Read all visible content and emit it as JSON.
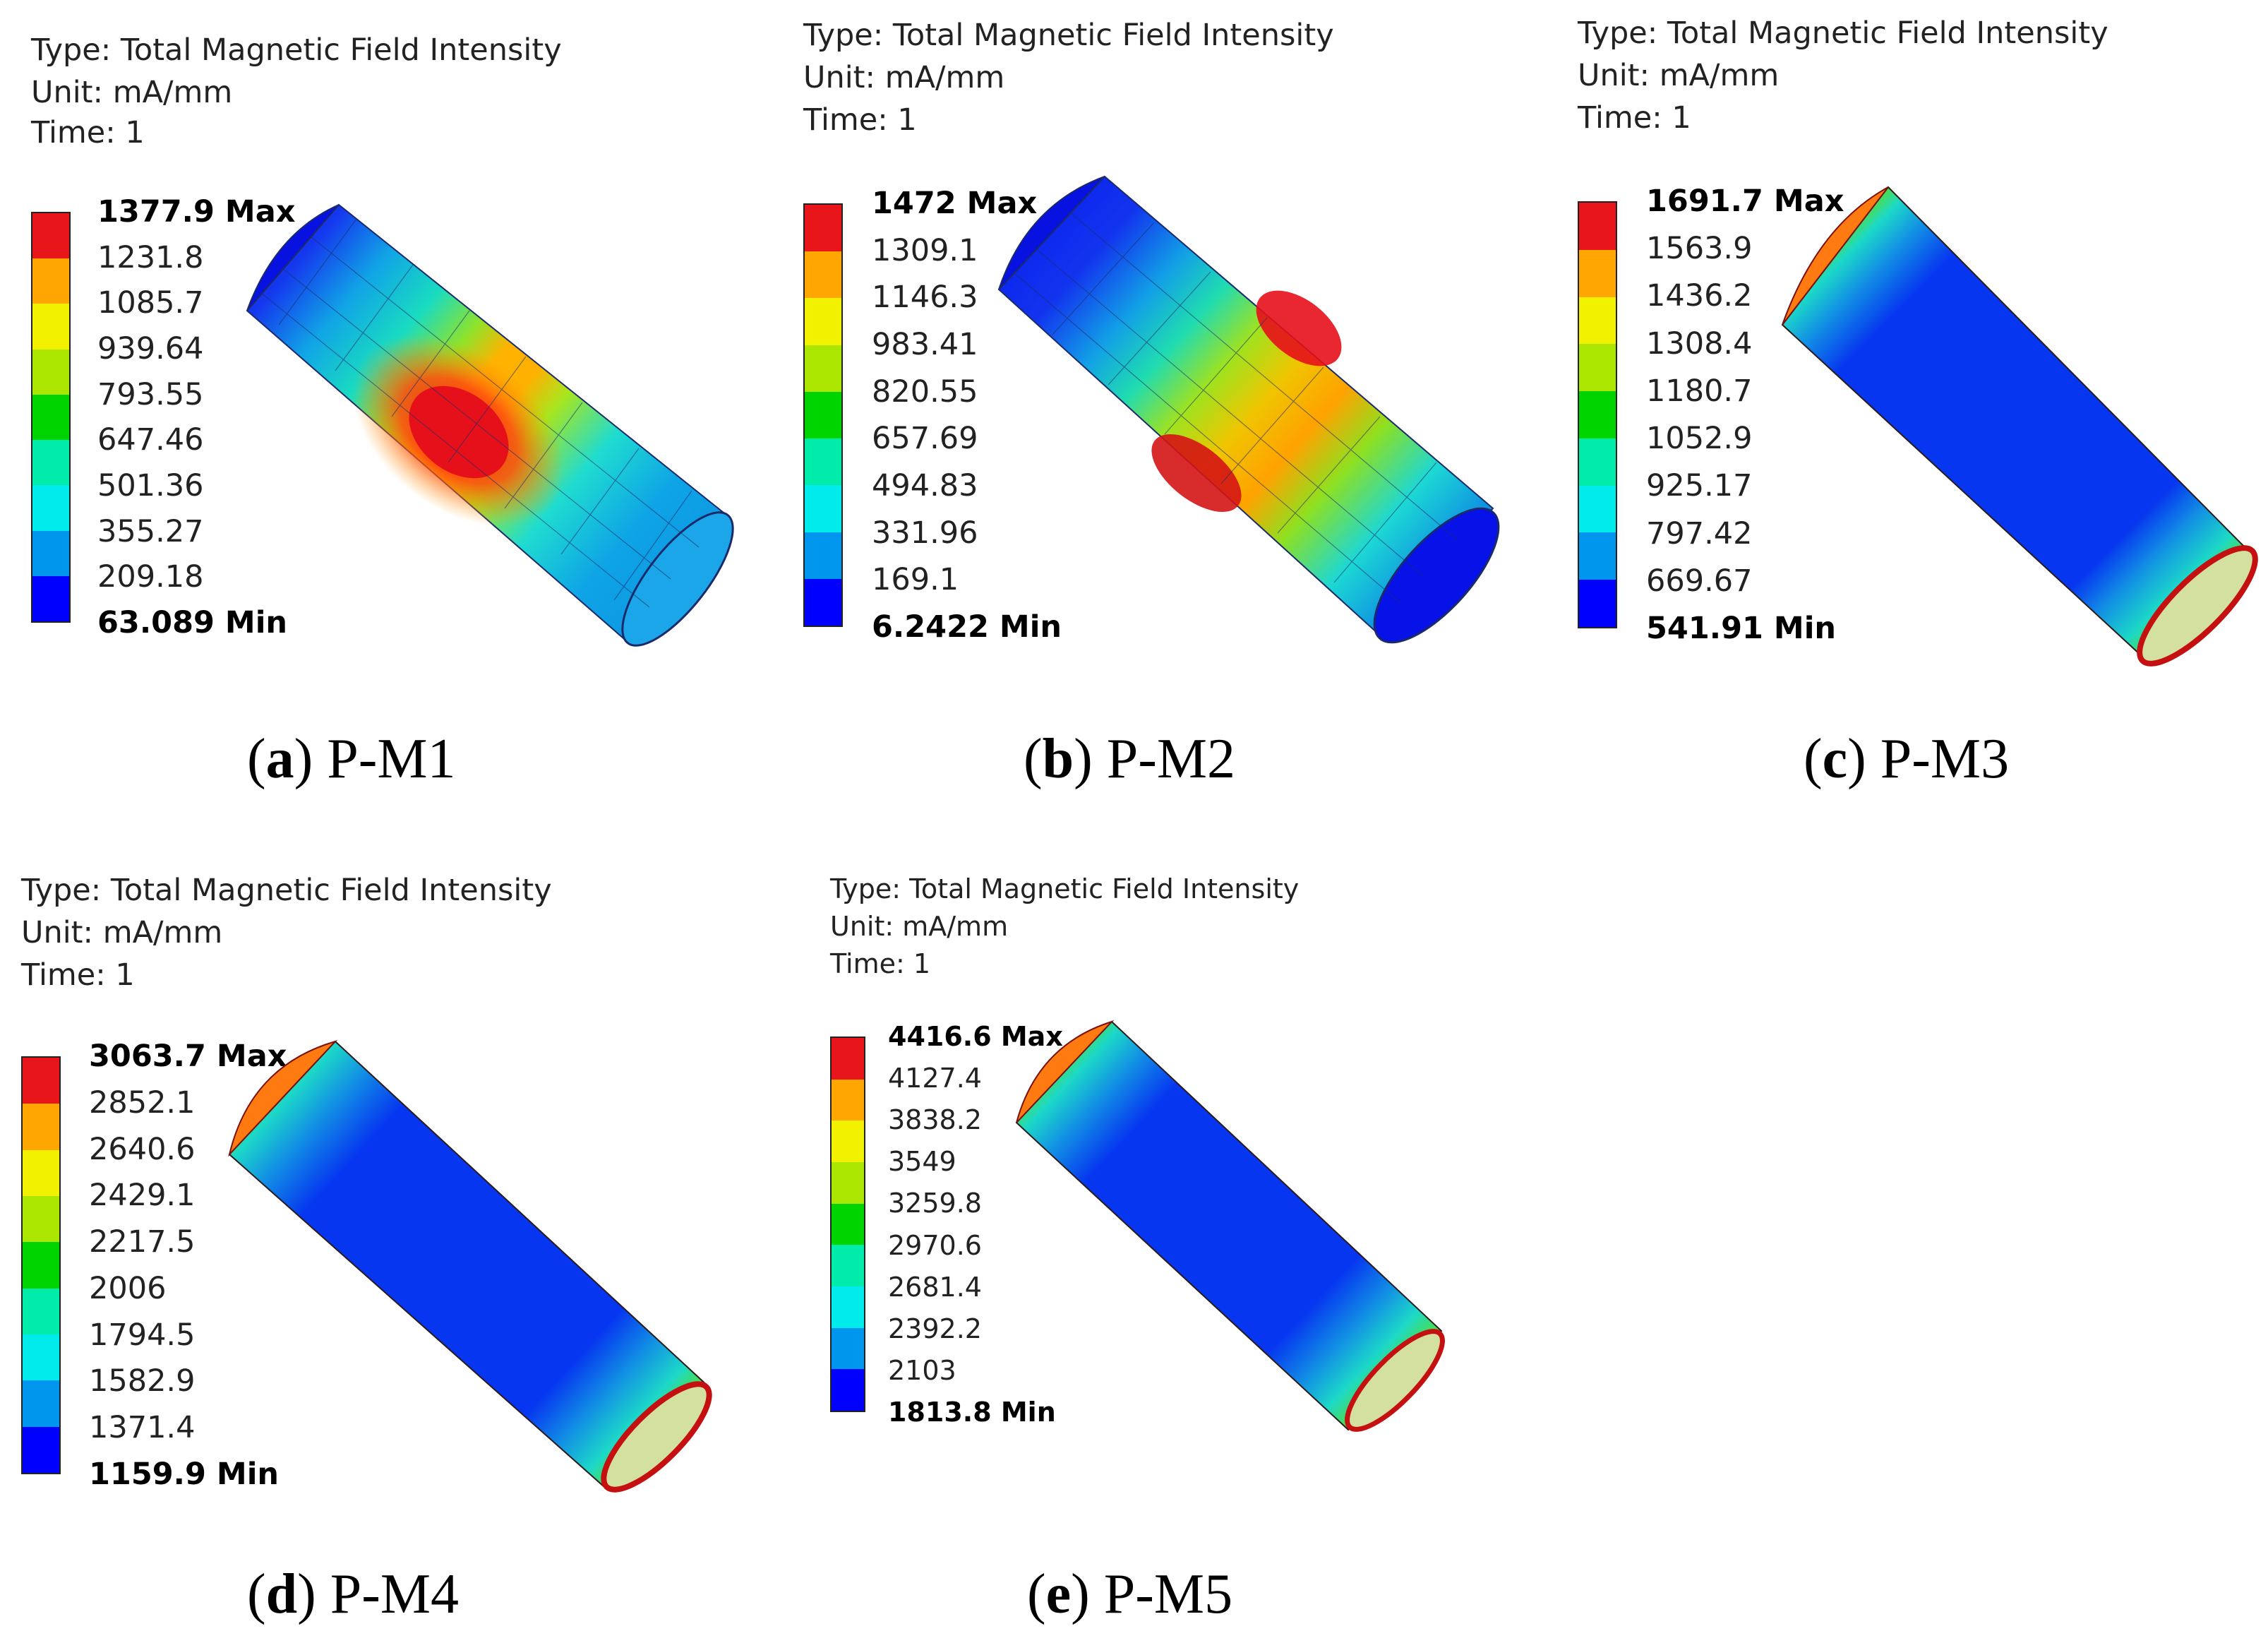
{
  "legend_colors": [
    "#0000ff",
    "#0096ee",
    "#00ecec",
    "#00ecab",
    "#00d400",
    "#aae600",
    "#f2f200",
    "#ffa600",
    "#e8161a"
  ],
  "panels": [
    {
      "id": "a",
      "type_line": "Type: Total Magnetic Field Intensity",
      "unit_line": "Unit: mA/mm",
      "time_line": "Time: 1",
      "legend_values": [
        "1377.9 Max",
        "1231.8",
        "1085.7",
        "939.64",
        "793.55",
        "647.46",
        "501.36",
        "355.27",
        "209.18",
        "63.089 Min"
      ],
      "caption_letter": "a",
      "caption_label": "P-M1",
      "field_pattern": "center hotspot"
    },
    {
      "id": "b",
      "type_line": "Type: Total Magnetic Field Intensity",
      "unit_line": "Unit: mA/mm",
      "time_line": "Time: 1",
      "legend_values": [
        "1472 Max",
        "1309.1",
        "1146.3",
        "983.41",
        "820.55",
        "657.69",
        "494.83",
        "331.96",
        "169.1",
        "6.2422 Min"
      ],
      "caption_letter": "b",
      "caption_label": "P-M2",
      "field_pattern": "center band with two hotspots"
    },
    {
      "id": "c",
      "type_line": "Type: Total Magnetic Field Intensity",
      "unit_line": "Unit: mA/mm",
      "time_line": "Time: 1",
      "legend_values": [
        "1691.7 Max",
        "1563.9",
        "1436.2",
        "1308.4",
        "1180.7",
        "1052.9",
        "925.17",
        "797.42",
        "669.67",
        "541.91 Min"
      ],
      "caption_letter": "c",
      "caption_label": "P-M3",
      "field_pattern": "hot at both ends"
    },
    {
      "id": "d",
      "type_line": "Type: Total Magnetic Field Intensity",
      "unit_line": "Unit: mA/mm",
      "time_line": "Time: 1",
      "legend_values": [
        "3063.7 Max",
        "2852.1",
        "2640.6",
        "2429.1",
        "2217.5",
        "2006",
        "1794.5",
        "1582.9",
        "1371.4",
        "1159.9 Min"
      ],
      "caption_letter": "d",
      "caption_label": "P-M4",
      "field_pattern": "hot at both ends"
    },
    {
      "id": "e",
      "type_line": "Type: Total Magnetic Field Intensity",
      "unit_line": "Unit: mA/mm",
      "time_line": "Time: 1",
      "legend_values": [
        "4416.6 Max",
        "4127.4",
        "3838.2",
        "3549",
        "3259.8",
        "2970.6",
        "2681.4",
        "2392.2",
        "2103",
        "1813.8 Min"
      ],
      "caption_letter": "e",
      "caption_label": "P-M5",
      "field_pattern": "hot at both ends"
    }
  ]
}
